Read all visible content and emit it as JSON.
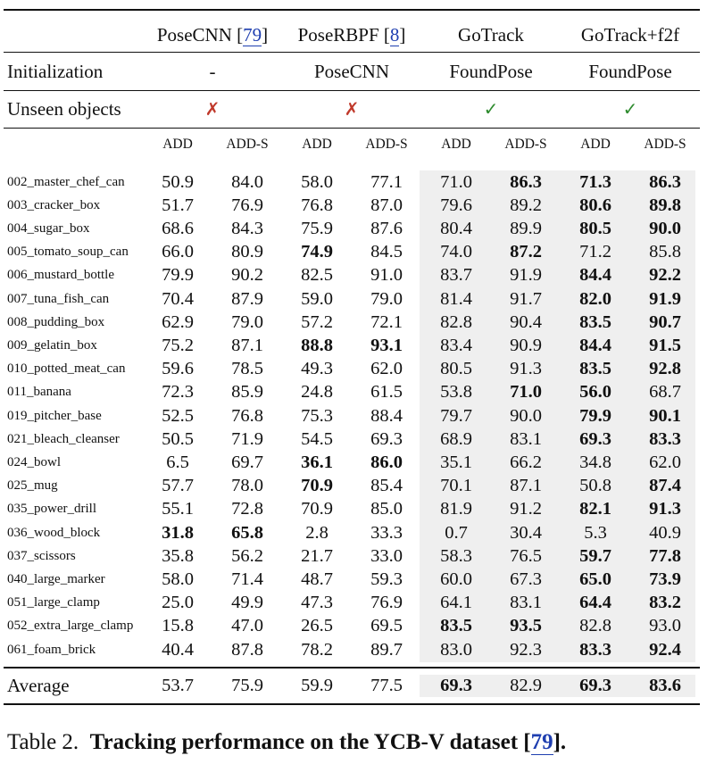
{
  "header": {
    "methods": [
      {
        "name": "PoseCNN ",
        "cite": "79"
      },
      {
        "name": "PoseRBPF ",
        "cite": "8"
      },
      {
        "name": "GoTrack",
        "cite": null
      },
      {
        "name": "GoTrack+f2f",
        "cite": null
      }
    ],
    "init_label": "Initialization",
    "init_values": [
      "-",
      "PoseCNN",
      "FoundPose",
      "FoundPose"
    ],
    "unseen_label": "Unseen objects",
    "unseen_values": [
      "✗",
      "✗",
      "✓",
      "✓"
    ],
    "metrics": [
      "ADD",
      "ADD-S",
      "ADD",
      "ADD-S",
      "ADD",
      "ADD-S",
      "ADD",
      "ADD-S"
    ]
  },
  "rows": [
    {
      "name": "002_master_chef_can",
      "values": [
        "50.9",
        "84.0",
        "58.0",
        "77.1",
        "71.0",
        "86.3",
        "71.3",
        "86.3"
      ],
      "bold": [
        5,
        6,
        7
      ]
    },
    {
      "name": "003_cracker_box",
      "values": [
        "51.7",
        "76.9",
        "76.8",
        "87.0",
        "79.6",
        "89.2",
        "80.6",
        "89.8"
      ],
      "bold": [
        6,
        7
      ]
    },
    {
      "name": "004_sugar_box",
      "values": [
        "68.6",
        "84.3",
        "75.9",
        "87.6",
        "80.4",
        "89.9",
        "80.5",
        "90.0"
      ],
      "bold": [
        6,
        7
      ]
    },
    {
      "name": "005_tomato_soup_can",
      "values": [
        "66.0",
        "80.9",
        "74.9",
        "84.5",
        "74.0",
        "87.2",
        "71.2",
        "85.8"
      ],
      "bold": [
        2,
        5
      ]
    },
    {
      "name": "006_mustard_bottle",
      "values": [
        "79.9",
        "90.2",
        "82.5",
        "91.0",
        "83.7",
        "91.9",
        "84.4",
        "92.2"
      ],
      "bold": [
        6,
        7
      ]
    },
    {
      "name": "007_tuna_fish_can",
      "values": [
        "70.4",
        "87.9",
        "59.0",
        "79.0",
        "81.4",
        "91.7",
        "82.0",
        "91.9"
      ],
      "bold": [
        6,
        7
      ]
    },
    {
      "name": "008_pudding_box",
      "values": [
        "62.9",
        "79.0",
        "57.2",
        "72.1",
        "82.8",
        "90.4",
        "83.5",
        "90.7"
      ],
      "bold": [
        6,
        7
      ]
    },
    {
      "name": "009_gelatin_box",
      "values": [
        "75.2",
        "87.1",
        "88.8",
        "93.1",
        "83.4",
        "90.9",
        "84.4",
        "91.5"
      ],
      "bold": [
        2,
        3,
        6,
        7
      ]
    },
    {
      "name": "010_potted_meat_can",
      "values": [
        "59.6",
        "78.5",
        "49.3",
        "62.0",
        "80.5",
        "91.3",
        "83.5",
        "92.8"
      ],
      "bold": [
        6,
        7
      ]
    },
    {
      "name": "011_banana",
      "values": [
        "72.3",
        "85.9",
        "24.8",
        "61.5",
        "53.8",
        "71.0",
        "56.0",
        "68.7"
      ],
      "bold": [
        5,
        6
      ]
    },
    {
      "name": "019_pitcher_base",
      "values": [
        "52.5",
        "76.8",
        "75.3",
        "88.4",
        "79.7",
        "90.0",
        "79.9",
        "90.1"
      ],
      "bold": [
        6,
        7
      ]
    },
    {
      "name": "021_bleach_cleanser",
      "values": [
        "50.5",
        "71.9",
        "54.5",
        "69.3",
        "68.9",
        "83.1",
        "69.3",
        "83.3"
      ],
      "bold": [
        6,
        7
      ]
    },
    {
      "name": "024_bowl",
      "values": [
        "6.5",
        "69.7",
        "36.1",
        "86.0",
        "35.1",
        "66.2",
        "34.8",
        "62.0"
      ],
      "bold": [
        2,
        3
      ]
    },
    {
      "name": "025_mug",
      "values": [
        "57.7",
        "78.0",
        "70.9",
        "85.4",
        "70.1",
        "87.1",
        "50.8",
        "87.4"
      ],
      "bold": [
        2,
        7
      ]
    },
    {
      "name": "035_power_drill",
      "values": [
        "55.1",
        "72.8",
        "70.9",
        "85.0",
        "81.9",
        "91.2",
        "82.1",
        "91.3"
      ],
      "bold": [
        6,
        7
      ]
    },
    {
      "name": "036_wood_block",
      "values": [
        "31.8",
        "65.8",
        "2.8",
        "33.3",
        "0.7",
        "30.4",
        "5.3",
        "40.9"
      ],
      "bold": [
        0,
        1
      ]
    },
    {
      "name": "037_scissors",
      "values": [
        "35.8",
        "56.2",
        "21.7",
        "33.0",
        "58.3",
        "76.5",
        "59.7",
        "77.8"
      ],
      "bold": [
        6,
        7
      ]
    },
    {
      "name": "040_large_marker",
      "values": [
        "58.0",
        "71.4",
        "48.7",
        "59.3",
        "60.0",
        "67.3",
        "65.0",
        "73.9"
      ],
      "bold": [
        6,
        7
      ]
    },
    {
      "name": "051_large_clamp",
      "values": [
        "25.0",
        "49.9",
        "47.3",
        "76.9",
        "64.1",
        "83.1",
        "64.4",
        "83.2"
      ],
      "bold": [
        6,
        7
      ]
    },
    {
      "name": "052_extra_large_clamp",
      "values": [
        "15.8",
        "47.0",
        "26.5",
        "69.5",
        "83.5",
        "93.5",
        "82.8",
        "93.0"
      ],
      "bold": [
        4,
        5
      ]
    },
    {
      "name": "061_foam_brick",
      "values": [
        "40.4",
        "87.8",
        "78.2",
        "89.7",
        "83.0",
        "92.3",
        "83.3",
        "92.4"
      ],
      "bold": [
        6,
        7
      ]
    }
  ],
  "average": {
    "name": "Average",
    "values": [
      "53.7",
      "75.9",
      "59.9",
      "77.5",
      "69.3",
      "82.9",
      "69.3",
      "83.6"
    ],
    "bold": [
      4,
      6,
      7
    ]
  },
  "caption": {
    "label": "Table 2.",
    "text": "Tracking performance on the YCB-V dataset [",
    "cite": "79",
    "end": "]."
  },
  "colors": {
    "cross": "#c0392b",
    "check": "#2e8b2e",
    "shade": "#efefef",
    "cite": "#1f3fb0"
  }
}
